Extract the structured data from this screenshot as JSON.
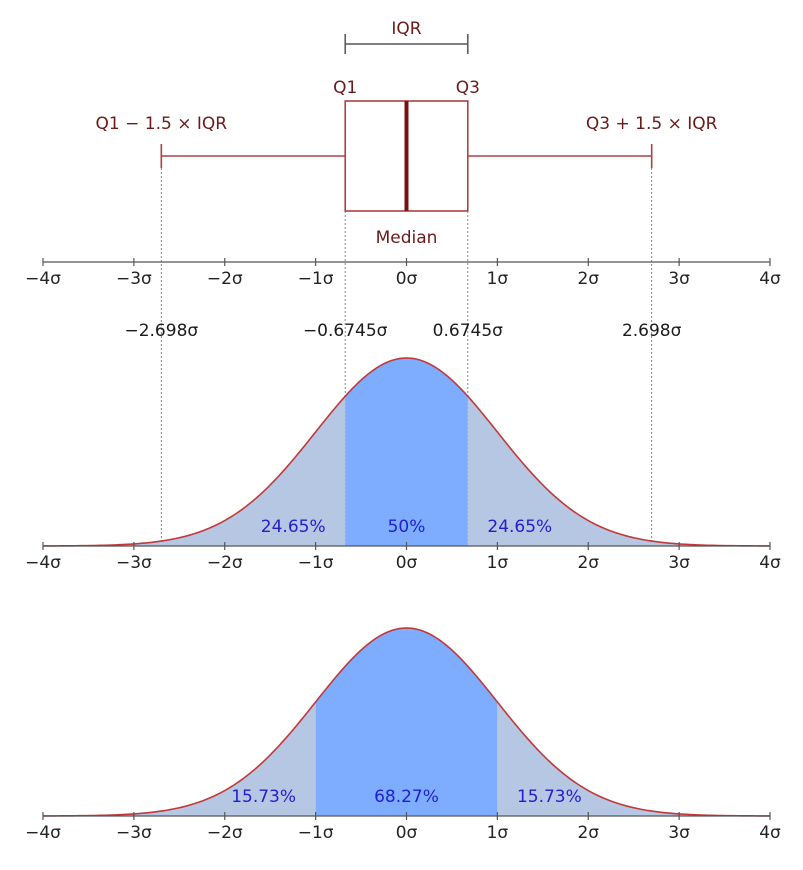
{
  "colors": {
    "box_stroke": "#b04040",
    "median_stroke": "#7a0f0f",
    "box_text": "#6b1a1a",
    "curve_stroke": "#c0393b",
    "tail_fill": "#b5c7e3",
    "center_fill": "#7eadff",
    "percent_text": "#1f1fcf",
    "bracket": "#555555"
  },
  "chart_data": [
    {
      "type": "box",
      "title": "",
      "labels": {
        "iqr": "IQR",
        "q1": "Q1",
        "q3": "Q3",
        "lower_whisker": "Q1 − 1.5 × IQR",
        "upper_whisker": "Q3 + 1.5 × IQR",
        "median": "Median"
      },
      "q1": -0.6745,
      "median": 0,
      "q3": 0.6745,
      "whisker_low": -2.698,
      "whisker_high": 2.698,
      "x_ticks": [
        -4,
        -3,
        -2,
        -1,
        0,
        1,
        2,
        3,
        4
      ],
      "x_tick_labels": [
        "−4σ",
        "−3σ",
        "−2σ",
        "−1σ",
        "0σ",
        "1σ",
        "2σ",
        "3σ",
        "4σ"
      ],
      "xlim": [
        -4,
        4
      ]
    },
    {
      "type": "area",
      "curve": "normal",
      "xlim": [
        -4,
        4
      ],
      "boundaries": [
        -2.698,
        -0.6745,
        0.6745,
        2.698
      ],
      "boundary_labels": [
        "−2.698σ",
        "−0.6745σ",
        "0.6745σ",
        "2.698σ"
      ],
      "regions": [
        {
          "from": -4,
          "to": -0.6745,
          "label": "24.65%",
          "style": "tail"
        },
        {
          "from": -0.6745,
          "to": 0.6745,
          "label": "50%",
          "style": "center"
        },
        {
          "from": 0.6745,
          "to": 4,
          "label": "24.65%",
          "style": "tail"
        }
      ],
      "x_ticks": [
        -4,
        -3,
        -2,
        -1,
        0,
        1,
        2,
        3,
        4
      ],
      "x_tick_labels": [
        "−4σ",
        "−3σ",
        "−2σ",
        "−1σ",
        "0σ",
        "1σ",
        "2σ",
        "3σ",
        "4σ"
      ]
    },
    {
      "type": "area",
      "curve": "normal",
      "xlim": [
        -4,
        4
      ],
      "regions": [
        {
          "from": -4,
          "to": -1,
          "label": "15.73%",
          "style": "tail"
        },
        {
          "from": -1,
          "to": 1,
          "label": "68.27%",
          "style": "center"
        },
        {
          "from": 1,
          "to": 4,
          "label": "15.73%",
          "style": "tail"
        }
      ],
      "x_ticks": [
        -4,
        -3,
        -2,
        -1,
        0,
        1,
        2,
        3,
        4
      ],
      "x_tick_labels": [
        "−4σ",
        "−3σ",
        "−2σ",
        "−1σ",
        "0σ",
        "1σ",
        "2σ",
        "3σ",
        "4σ"
      ]
    }
  ]
}
